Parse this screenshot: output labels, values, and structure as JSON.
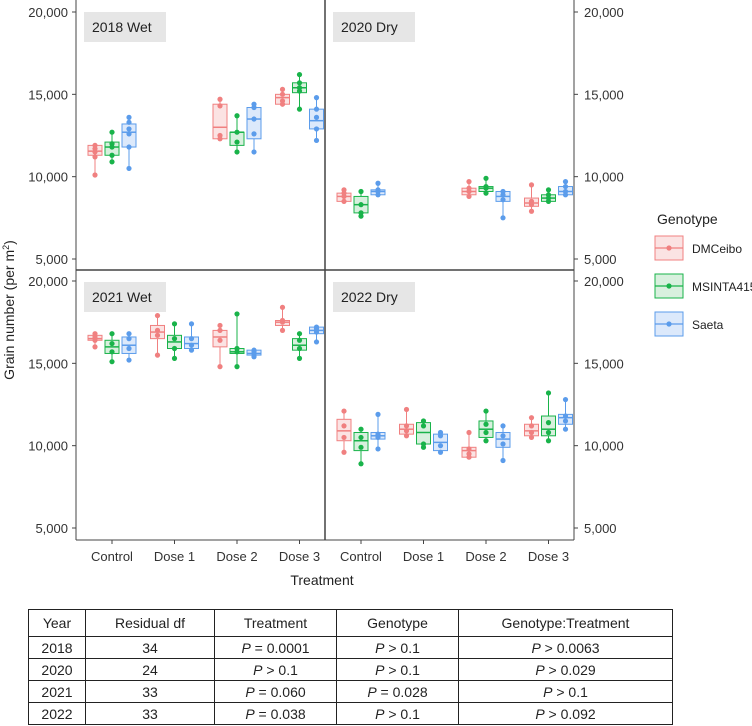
{
  "chart_data": {
    "type": "box",
    "ylabel": "Grain number (per m²)",
    "ylabel_pre": "Grain number (per m",
    "ylabel_sup": "2",
    "ylabel_post": ")",
    "xlabel": "Treatment",
    "categories": [
      "Control",
      "Dose 1",
      "Dose 2",
      "Dose 3"
    ],
    "ylim": [
      4500,
      20000
    ],
    "yticks": [
      5000,
      10000,
      15000,
      20000
    ],
    "ytick_labels": [
      "5,000",
      "10,000",
      "15,000",
      "20,000"
    ],
    "legend": {
      "title": "Genotype",
      "placement": "right",
      "entries": [
        "DMCeibo",
        "MSINTA415",
        "Saeta"
      ]
    },
    "colors": {
      "DMCeibo": "#F08080",
      "MSINTA415": "#19B34A",
      "Saeta": "#5B9CEB",
      "panel_label_bg": "#e6e6e6",
      "divider": "#444444"
    },
    "panels": [
      {
        "year": "2018",
        "season": "Wet",
        "groups": [
          {
            "cat": "Control",
            "genotype": "DMCeibo",
            "q1": 11300,
            "median": 11550,
            "q3": 11900,
            "min": 10100,
            "max": 11900,
            "points": [
              10100,
              11200,
              11500,
              11700,
              11900
            ]
          },
          {
            "cat": "Control",
            "genotype": "MSINTA415",
            "q1": 11300,
            "median": 11800,
            "q3": 12100,
            "min": 10900,
            "max": 12700,
            "points": [
              10900,
              11300,
              11800,
              12000,
              12700
            ]
          },
          {
            "cat": "Control",
            "genotype": "Saeta",
            "q1": 11800,
            "median": 12700,
            "q3": 13200,
            "min": 10500,
            "max": 13600,
            "points": [
              10500,
              11800,
              12600,
              12900,
              13300,
              13600
            ]
          },
          {
            "cat": "Dose 1",
            "genotype": "DMCeibo",
            "q1": null,
            "median": null,
            "q3": null,
            "min": null,
            "max": null,
            "points": []
          },
          {
            "cat": "Dose 1",
            "genotype": "MSINTA415",
            "q1": null,
            "median": null,
            "q3": null,
            "min": null,
            "max": null,
            "points": []
          },
          {
            "cat": "Dose 1",
            "genotype": "Saeta",
            "q1": null,
            "median": null,
            "q3": null,
            "min": null,
            "max": null,
            "points": []
          },
          {
            "cat": "Dose 2",
            "genotype": "DMCeibo",
            "q1": 12300,
            "median": 13000,
            "q3": 14400,
            "min": 12300,
            "max": 14700,
            "points": [
              12300,
              12500,
              14300,
              14700
            ]
          },
          {
            "cat": "Dose 2",
            "genotype": "MSINTA415",
            "q1": 11900,
            "median": 12700,
            "q3": 12700,
            "min": 11500,
            "max": 13700,
            "points": [
              11500,
              12100,
              12700,
              13700
            ]
          },
          {
            "cat": "Dose 2",
            "genotype": "Saeta",
            "q1": 12300,
            "median": 13500,
            "q3": 14200,
            "min": 11500,
            "max": 14400,
            "points": [
              11500,
              12600,
              13500,
              14200,
              14400
            ]
          },
          {
            "cat": "Dose 3",
            "genotype": "DMCeibo",
            "q1": 14400,
            "median": 14800,
            "q3": 15000,
            "min": 14400,
            "max": 15300,
            "points": [
              14400,
              14600,
              15000,
              15300
            ]
          },
          {
            "cat": "Dose 3",
            "genotype": "MSINTA415",
            "q1": 15100,
            "median": 15400,
            "q3": 15700,
            "min": 14100,
            "max": 16200,
            "points": [
              14100,
              15200,
              15400,
              15700,
              16200
            ]
          },
          {
            "cat": "Dose 3",
            "genotype": "Saeta",
            "q1": 12900,
            "median": 13400,
            "q3": 14100,
            "min": 12200,
            "max": 14800,
            "points": [
              12200,
              12900,
              13600,
              14100,
              14800
            ]
          }
        ]
      },
      {
        "year": "2020",
        "season": "Dry",
        "groups": [
          {
            "cat": "Control",
            "genotype": "DMCeibo",
            "q1": 8500,
            "median": 8800,
            "q3": 9000,
            "min": 8500,
            "max": 9200,
            "points": [
              8500,
              8800,
              9000,
              9200
            ]
          },
          {
            "cat": "Control",
            "genotype": "MSINTA415",
            "q1": 7800,
            "median": 8300,
            "q3": 8800,
            "min": 7600,
            "max": 9100,
            "points": [
              7600,
              7800,
              8300,
              9100
            ]
          },
          {
            "cat": "Control",
            "genotype": "Saeta",
            "q1": 8900,
            "median": 9100,
            "q3": 9200,
            "min": 8900,
            "max": 9600,
            "points": [
              8900,
              9100,
              9200,
              9600
            ]
          },
          {
            "cat": "Dose 1",
            "genotype": "DMCeibo",
            "q1": null,
            "median": null,
            "q3": null,
            "min": null,
            "max": null,
            "points": []
          },
          {
            "cat": "Dose 1",
            "genotype": "MSINTA415",
            "q1": null,
            "median": null,
            "q3": null,
            "min": null,
            "max": null,
            "points": []
          },
          {
            "cat": "Dose 1",
            "genotype": "Saeta",
            "q1": null,
            "median": null,
            "q3": null,
            "min": null,
            "max": null,
            "points": []
          },
          {
            "cat": "Dose 2",
            "genotype": "DMCeibo",
            "q1": 8900,
            "median": 9100,
            "q3": 9300,
            "min": 8800,
            "max": 9700,
            "points": [
              8800,
              9100,
              9300,
              9700
            ]
          },
          {
            "cat": "Dose 2",
            "genotype": "MSINTA415",
            "q1": 9100,
            "median": 9300,
            "q3": 9400,
            "min": 9000,
            "max": 9900,
            "points": [
              9000,
              9300,
              9400,
              9900
            ]
          },
          {
            "cat": "Dose 2",
            "genotype": "Saeta",
            "q1": 8500,
            "median": 8800,
            "q3": 9100,
            "min": 7500,
            "max": 9100,
            "points": [
              7500,
              8600,
              8900,
              9100
            ]
          },
          {
            "cat": "Dose 3",
            "genotype": "DMCeibo",
            "q1": 8200,
            "median": 8400,
            "q3": 8700,
            "min": 7900,
            "max": 9500,
            "points": [
              7900,
              8300,
              8500,
              9500
            ]
          },
          {
            "cat": "Dose 3",
            "genotype": "MSINTA415",
            "q1": 8500,
            "median": 8700,
            "q3": 8900,
            "min": 8500,
            "max": 9200,
            "points": [
              8500,
              8700,
              8900,
              9200
            ]
          },
          {
            "cat": "Dose 3",
            "genotype": "Saeta",
            "q1": 8900,
            "median": 9100,
            "q3": 9400,
            "min": 8900,
            "max": 9700,
            "points": [
              8900,
              9100,
              9400,
              9700
            ]
          }
        ]
      },
      {
        "year": "2021",
        "season": "Wet",
        "groups": [
          {
            "cat": "Control",
            "genotype": "DMCeibo",
            "q1": 16400,
            "median": 16500,
            "q3": 16700,
            "min": 16000,
            "max": 16800,
            "points": [
              16000,
              16400,
              16600,
              16800
            ]
          },
          {
            "cat": "Control",
            "genotype": "MSINTA415",
            "q1": 15600,
            "median": 16000,
            "q3": 16400,
            "min": 15100,
            "max": 16800,
            "points": [
              15100,
              15700,
              16200,
              16800
            ]
          },
          {
            "cat": "Control",
            "genotype": "Saeta",
            "q1": 15600,
            "median": 16100,
            "q3": 16600,
            "min": 15200,
            "max": 16800,
            "points": [
              15200,
              15900,
              16500,
              16800
            ]
          },
          {
            "cat": "Dose 1",
            "genotype": "DMCeibo",
            "q1": 16500,
            "median": 16900,
            "q3": 17300,
            "min": 15500,
            "max": 17900,
            "points": [
              15500,
              16700,
              17000,
              17900
            ]
          },
          {
            "cat": "Dose 1",
            "genotype": "MSINTA415",
            "q1": 15900,
            "median": 16300,
            "q3": 16700,
            "min": 15300,
            "max": 17400,
            "points": [
              15300,
              15900,
              16500,
              17400
            ]
          },
          {
            "cat": "Dose 1",
            "genotype": "Saeta",
            "q1": 15900,
            "median": 16200,
            "q3": 16600,
            "min": 15800,
            "max": 17400,
            "points": [
              15800,
              16100,
              16500,
              17400
            ]
          },
          {
            "cat": "Dose 2",
            "genotype": "DMCeibo",
            "q1": 16000,
            "median": 16600,
            "q3": 17000,
            "min": 14800,
            "max": 17300,
            "points": [
              14800,
              16400,
              17000,
              17300
            ]
          },
          {
            "cat": "Dose 2",
            "genotype": "MSINTA415",
            "q1": 15600,
            "median": 15700,
            "q3": 15900,
            "min": 14800,
            "max": 18000,
            "points": [
              14800,
              15700,
              15900,
              18000
            ]
          },
          {
            "cat": "Dose 2",
            "genotype": "Saeta",
            "q1": 15500,
            "median": 15600,
            "q3": 15800,
            "min": 15400,
            "max": 15800,
            "points": [
              15400,
              15500,
              15700,
              15800
            ]
          },
          {
            "cat": "Dose 3",
            "genotype": "DMCeibo",
            "q1": 17300,
            "median": 17500,
            "q3": 17600,
            "min": 17000,
            "max": 18400,
            "points": [
              17000,
              17500,
              17600,
              18400
            ]
          },
          {
            "cat": "Dose 3",
            "genotype": "MSINTA415",
            "q1": 15800,
            "median": 16100,
            "q3": 16500,
            "min": 15300,
            "max": 16800,
            "points": [
              15300,
              15900,
              16400,
              16800
            ]
          },
          {
            "cat": "Dose 3",
            "genotype": "Saeta",
            "q1": 16800,
            "median": 17000,
            "q3": 17200,
            "min": 16300,
            "max": 17200,
            "points": [
              16300,
              16900,
              17100,
              17200
            ]
          }
        ]
      },
      {
        "year": "2022",
        "season": "Dry",
        "groups": [
          {
            "cat": "Control",
            "genotype": "DMCeibo",
            "q1": 10300,
            "median": 10900,
            "q3": 11600,
            "min": 9600,
            "max": 12100,
            "points": [
              9600,
              10500,
              11200,
              12100
            ]
          },
          {
            "cat": "Control",
            "genotype": "MSINTA415",
            "q1": 9700,
            "median": 10300,
            "q3": 10800,
            "min": 8900,
            "max": 11000,
            "points": [
              8900,
              9900,
              10500,
              11000
            ]
          },
          {
            "cat": "Control",
            "genotype": "Saeta",
            "q1": 10400,
            "median": 10600,
            "q3": 10800,
            "min": 9800,
            "max": 11900,
            "points": [
              9800,
              10500,
              10700,
              11900
            ]
          },
          {
            "cat": "Dose 1",
            "genotype": "DMCeibo",
            "q1": 10700,
            "median": 11000,
            "q3": 11300,
            "min": 10600,
            "max": 12200,
            "points": [
              10600,
              10900,
              11200,
              12200
            ]
          },
          {
            "cat": "Dose 1",
            "genotype": "MSINTA415",
            "q1": 10100,
            "median": 10800,
            "q3": 11400,
            "min": 9900,
            "max": 11500,
            "points": [
              9900,
              10100,
              11200,
              11500
            ]
          },
          {
            "cat": "Dose 1",
            "genotype": "Saeta",
            "q1": 9700,
            "median": 10200,
            "q3": 10700,
            "min": 9600,
            "max": 10800,
            "points": [
              9600,
              10000,
              10600,
              10800
            ]
          },
          {
            "cat": "Dose 2",
            "genotype": "DMCeibo",
            "q1": 9300,
            "median": 9700,
            "q3": 9900,
            "min": 9300,
            "max": 10800,
            "points": [
              9300,
              9500,
              9800,
              10800
            ]
          },
          {
            "cat": "Dose 2",
            "genotype": "MSINTA415",
            "q1": 10500,
            "median": 11000,
            "q3": 11500,
            "min": 10300,
            "max": 12100,
            "points": [
              10300,
              10800,
              11300,
              12100
            ]
          },
          {
            "cat": "Dose 2",
            "genotype": "Saeta",
            "q1": 9900,
            "median": 10400,
            "q3": 10800,
            "min": 9100,
            "max": 11200,
            "points": [
              9100,
              10100,
              10600,
              11200
            ]
          },
          {
            "cat": "Dose 3",
            "genotype": "DMCeibo",
            "q1": 10600,
            "median": 10900,
            "q3": 11300,
            "min": 10500,
            "max": 11700,
            "points": [
              10500,
              10800,
              11200,
              11700
            ]
          },
          {
            "cat": "Dose 3",
            "genotype": "MSINTA415",
            "q1": 10600,
            "median": 11000,
            "q3": 11800,
            "min": 10300,
            "max": 13200,
            "points": [
              10300,
              10800,
              11400,
              13200
            ]
          },
          {
            "cat": "Dose 3",
            "genotype": "Saeta",
            "q1": 11300,
            "median": 11700,
            "q3": 11900,
            "min": 11000,
            "max": 12800,
            "points": [
              11000,
              11500,
              11800,
              12800
            ]
          }
        ]
      }
    ]
  },
  "stats_table": {
    "headers": [
      "Year",
      "Residual df",
      "Treatment",
      "Genotype",
      "Genotype:Treatment"
    ],
    "rows": [
      {
        "year": "2018",
        "df": "34",
        "treatment": {
          "p": "P",
          "rest": " = 0.0001"
        },
        "genotype": {
          "p": "P",
          "rest": " > 0.1"
        },
        "interaction": {
          "p": "P",
          "rest": " > 0.0063"
        }
      },
      {
        "year": "2020",
        "df": "24",
        "treatment": {
          "p": "P",
          "rest": " > 0.1"
        },
        "genotype": {
          "p": "P",
          "rest": " > 0.1"
        },
        "interaction": {
          "p": "P",
          "rest": " > 0.029"
        }
      },
      {
        "year": "2021",
        "df": "33",
        "treatment": {
          "p": "P",
          "rest": " = 0.060"
        },
        "genotype": {
          "p": "P",
          "rest": " = 0.028"
        },
        "interaction": {
          "p": "P",
          "rest": " > 0.1"
        }
      },
      {
        "year": "2022",
        "df": "33",
        "treatment": {
          "p": "P",
          "rest": " = 0.038"
        },
        "genotype": {
          "p": "P",
          "rest": " > 0.1"
        },
        "interaction": {
          "p": "P",
          "rest": " > 0.092"
        }
      }
    ]
  }
}
